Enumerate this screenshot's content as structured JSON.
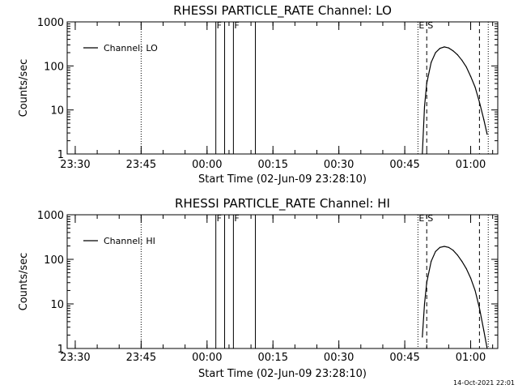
{
  "chart_data": [
    {
      "type": "line",
      "title": "RHESSI PARTICLE_RATE Channel: LO",
      "xlabel": "Start Time (02-Jun-09 23:28:10)",
      "ylabel": "Counts/sec",
      "y_scale": "log",
      "ylim": [
        1,
        1000
      ],
      "y_ticks": [
        1,
        10,
        100,
        1000
      ],
      "y_tick_labels": [
        "1",
        "10",
        "100",
        "1000"
      ],
      "xlim": [
        "23:28:10",
        "01:06:10"
      ],
      "x_ticks": [
        "23:30",
        "23:45",
        "00:00",
        "00:15",
        "00:30",
        "00:45",
        "01:00"
      ],
      "legend": {
        "position": "top-left",
        "entries": [
          "Channel: LO"
        ]
      },
      "markers": [
        {
          "time": "23:45",
          "style": "dotted",
          "label": ""
        },
        {
          "time": "00:02",
          "style": "solid",
          "label": "F"
        },
        {
          "time": "00:04",
          "style": "solid",
          "label": ""
        },
        {
          "time": "00:06",
          "style": "solid",
          "label": "F"
        },
        {
          "time": "00:11",
          "style": "solid",
          "label": ""
        },
        {
          "time": "00:48",
          "style": "dotted",
          "label": "E"
        },
        {
          "time": "00:50",
          "style": "dashed",
          "label": "S"
        },
        {
          "time": "01:02",
          "style": "dashed",
          "label": ""
        },
        {
          "time": "01:04",
          "style": "dotted",
          "label": ""
        }
      ],
      "series": [
        {
          "name": "Channel: LO",
          "x": [
            "00:49:00",
            "00:49:30",
            "00:50:00",
            "00:51:00",
            "00:52:00",
            "00:53:00",
            "00:54:00",
            "00:55:00",
            "00:56:00",
            "00:57:00",
            "00:58:00",
            "00:59:00",
            "01:00:00",
            "01:01:00",
            "01:02:00",
            "01:03:00",
            "01:03:45"
          ],
          "y": [
            1.0,
            12,
            40,
            120,
            200,
            250,
            270,
            255,
            220,
            180,
            135,
            95,
            58,
            33,
            15,
            6,
            2.8
          ]
        }
      ]
    },
    {
      "type": "line",
      "title": "RHESSI PARTICLE_RATE Channel: HI",
      "xlabel": "Start Time (02-Jun-09 23:28:10)",
      "ylabel": "Counts/sec",
      "y_scale": "log",
      "ylim": [
        1,
        1000
      ],
      "y_ticks": [
        1,
        10,
        100,
        1000
      ],
      "y_tick_labels": [
        "1",
        "10",
        "100",
        "1000"
      ],
      "xlim": [
        "23:28:10",
        "01:06:10"
      ],
      "x_ticks": [
        "23:30",
        "23:45",
        "00:00",
        "00:15",
        "00:30",
        "00:45",
        "01:00"
      ],
      "legend": {
        "position": "top-left",
        "entries": [
          "Channel: HI"
        ]
      },
      "markers": [
        {
          "time": "23:45",
          "style": "dotted",
          "label": ""
        },
        {
          "time": "00:02",
          "style": "solid",
          "label": "F"
        },
        {
          "time": "00:04",
          "style": "solid",
          "label": ""
        },
        {
          "time": "00:06",
          "style": "solid",
          "label": "F"
        },
        {
          "time": "00:11",
          "style": "solid",
          "label": ""
        },
        {
          "time": "00:48",
          "style": "dotted",
          "label": "E"
        },
        {
          "time": "00:50",
          "style": "dashed",
          "label": "S"
        },
        {
          "time": "01:02",
          "style": "dashed",
          "label": ""
        },
        {
          "time": "01:04",
          "style": "dotted",
          "label": ""
        }
      ],
      "series": [
        {
          "name": "Channel: HI",
          "x": [
            "00:49:00",
            "00:49:30",
            "00:50:00",
            "00:51:00",
            "00:52:00",
            "00:53:00",
            "00:54:00",
            "00:55:00",
            "00:56:00",
            "00:57:00",
            "00:58:00",
            "00:59:00",
            "01:00:00",
            "01:01:00",
            "01:02:00",
            "01:03:00",
            "01:03:45"
          ],
          "y": [
            1.8,
            10,
            30,
            90,
            150,
            185,
            195,
            185,
            160,
            125,
            90,
            62,
            38,
            20,
            8,
            2.5,
            1.0
          ]
        }
      ]
    }
  ],
  "timestamp": "14-Oct-2021 22:01",
  "colors": {
    "line": "#000000",
    "background": "#ffffff"
  }
}
